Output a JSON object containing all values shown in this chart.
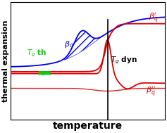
{
  "fig_width": 2.37,
  "fig_height": 1.89,
  "dpi": 100,
  "bg_color": "#ffffff",
  "plot_bg_color": "#ffffff",
  "blue_color": "#0000ee",
  "red_color": "#dd0000",
  "green_color": "#00cc00",
  "black_color": "#000000",
  "xlabel": "temperature",
  "ylabel": "thermal expansion",
  "xlabel_fontsize": 10,
  "ylabel_fontsize": 8,
  "tg_th": 2.2,
  "tg_dyn": 6.3,
  "xlim": [
    0,
    10
  ],
  "ylim": [
    -0.22,
    1.05
  ]
}
